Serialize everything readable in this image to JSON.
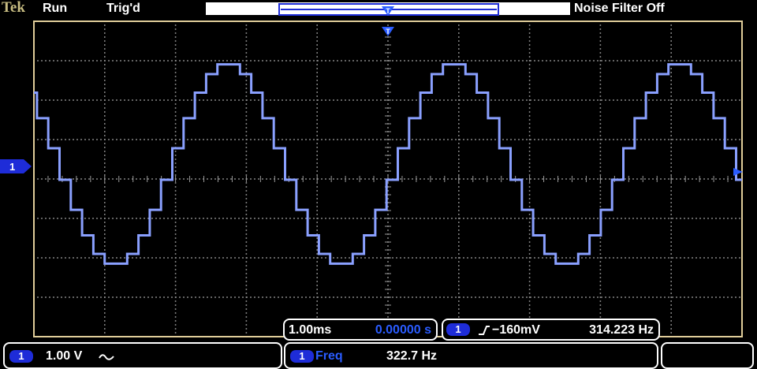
{
  "header": {
    "brand": "Tek",
    "run_state": "Run",
    "trigger_state": "Trig'd",
    "noise_filter": "Noise Filter Off"
  },
  "channel_marker": {
    "label": "1"
  },
  "trigger_marker": {
    "label": "T"
  },
  "timebase": {
    "scale": "1.00ms",
    "position": "0.00000 s"
  },
  "trigger": {
    "channel": "1",
    "slope": "rising-edge-icon",
    "level": "−160mV",
    "frequency": "314.223 Hz"
  },
  "channel1": {
    "label": "1",
    "scale": "1.00 V",
    "coupling": "ac-coupling-icon"
  },
  "measurement": {
    "channel": "1",
    "name": "Freq",
    "value": "322.7 Hz"
  },
  "colors": {
    "trace": "#8aa0ff",
    "marker": "#1e2cd8",
    "grid": "#9a9a9a",
    "frame": "#e0cd9a"
  }
}
